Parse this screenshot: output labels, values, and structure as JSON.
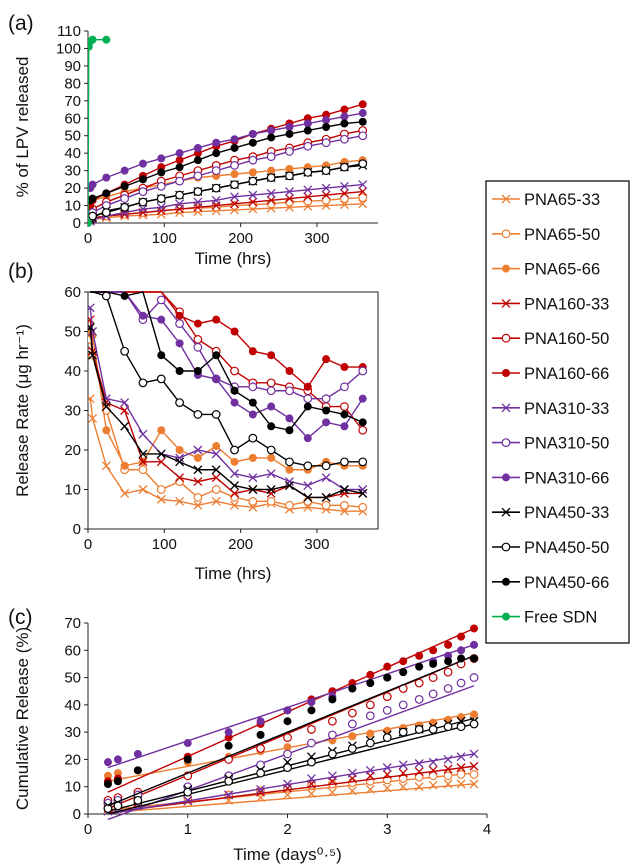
{
  "figure": {
    "legend": [
      {
        "name": "PNA65-33",
        "color": "#ED7D31",
        "marker": "x"
      },
      {
        "name": "PNA65-50",
        "color": "#ED7D31",
        "marker": "o"
      },
      {
        "name": "PNA65-66",
        "color": "#ED7D31",
        "marker": "dot"
      },
      {
        "name": "PNA160-33",
        "color": "#C00000",
        "marker": "x"
      },
      {
        "name": "PNA160-50",
        "color": "#C00000",
        "marker": "o"
      },
      {
        "name": "PNA160-66",
        "color": "#C00000",
        "marker": "dot"
      },
      {
        "name": "PNA310-33",
        "color": "#7030A0",
        "marker": "x"
      },
      {
        "name": "PNA310-50",
        "color": "#7030A0",
        "marker": "o"
      },
      {
        "name": "PNA310-66",
        "color": "#7030A0",
        "marker": "dot"
      },
      {
        "name": "PNA450-33",
        "color": "#000000",
        "marker": "x"
      },
      {
        "name": "PNA450-50",
        "color": "#000000",
        "marker": "o"
      },
      {
        "name": "PNA450-66",
        "color": "#000000",
        "marker": "dot"
      },
      {
        "name": "Free SDN",
        "color": "#00B050",
        "marker": "dot"
      }
    ]
  },
  "chart_data": [
    {
      "panel": "(a)",
      "type": "line",
      "xlabel": "Time (hrs)",
      "ylabel": "% of LPV released",
      "xlim": [
        0,
        380
      ],
      "ylim": [
        0,
        110
      ],
      "xticks": [
        0,
        100,
        200,
        300
      ],
      "yticks": [
        0,
        10,
        20,
        30,
        40,
        50,
        60,
        70,
        80,
        90,
        100,
        110
      ],
      "x": [
        3,
        6,
        24,
        48,
        72,
        96,
        120,
        144,
        168,
        192,
        216,
        240,
        264,
        288,
        312,
        336,
        360
      ],
      "series": [
        {
          "name": "PNA65-33",
          "values": [
            1,
            2,
            3,
            4,
            4.5,
            5,
            6,
            6.5,
            7,
            7.5,
            8,
            8.5,
            9,
            9.5,
            10,
            10.5,
            11
          ]
        },
        {
          "name": "PNA65-50",
          "values": [
            2,
            3,
            4,
            5,
            6,
            7,
            8,
            8.5,
            9,
            10,
            10.5,
            11,
            12,
            12.5,
            13,
            14,
            14.5
          ]
        },
        {
          "name": "PNA65-66",
          "values": [
            12,
            13,
            15,
            18,
            20,
            22,
            24,
            26,
            27,
            28,
            29,
            30,
            31,
            32,
            33,
            35,
            36
          ]
        },
        {
          "name": "PNA160-33",
          "values": [
            2,
            3,
            4,
            5,
            6,
            7,
            8,
            9,
            10,
            11,
            12,
            13,
            14,
            15,
            16,
            17,
            18
          ]
        },
        {
          "name": "PNA160-50",
          "values": [
            5,
            8,
            12,
            16,
            20,
            24,
            27,
            30,
            33,
            36,
            38,
            41,
            43,
            46,
            48,
            51,
            53
          ]
        },
        {
          "name": "PNA160-66",
          "values": [
            10,
            13,
            17,
            22,
            27,
            32,
            36,
            40,
            44,
            47,
            51,
            54,
            57,
            60,
            62,
            65,
            68
          ]
        },
        {
          "name": "PNA310-33",
          "values": [
            1,
            2,
            4,
            6,
            8,
            9,
            11,
            12,
            13,
            15,
            16,
            17,
            18,
            19,
            20,
            21,
            22
          ]
        },
        {
          "name": "PNA310-50",
          "values": [
            4,
            6,
            10,
            14,
            18,
            21,
            24,
            27,
            30,
            33,
            36,
            38,
            41,
            44,
            46,
            48,
            50
          ]
        },
        {
          "name": "PNA310-66",
          "values": [
            20,
            22,
            26,
            30,
            34,
            37,
            40,
            43,
            46,
            48,
            51,
            53,
            55,
            57,
            59,
            61,
            63
          ]
        },
        {
          "name": "PNA450-33",
          "values": [
            2,
            3,
            7,
            9,
            12,
            14,
            16,
            18,
            20,
            22,
            24,
            26,
            27,
            29,
            30,
            32,
            33
          ]
        },
        {
          "name": "PNA450-50",
          "values": [
            3,
            4,
            6,
            9,
            12,
            14,
            16,
            18,
            20,
            22,
            24,
            26,
            27,
            29,
            30,
            32,
            34
          ]
        },
        {
          "name": "PNA450-66",
          "values": [
            13,
            14,
            17,
            21,
            25,
            29,
            32,
            36,
            40,
            43,
            46,
            49,
            51,
            53,
            55,
            57,
            58
          ]
        },
        {
          "name": "Free SDN",
          "x": [
            0,
            1,
            3,
            6,
            24
          ],
          "values": [
            0,
            101,
            104,
            105,
            105
          ]
        }
      ]
    },
    {
      "panel": "(b)",
      "type": "line",
      "xlabel": "Time (hrs)",
      "ylabel": "Release Rate (μg hr⁻¹)",
      "xlim": [
        0,
        380
      ],
      "ylim": [
        0,
        60
      ],
      "xticks": [
        0,
        100,
        200,
        300
      ],
      "yticks": [
        0,
        10,
        20,
        30,
        40,
        50,
        60
      ],
      "x": [
        3,
        6,
        24,
        48,
        72,
        96,
        120,
        144,
        168,
        192,
        216,
        240,
        264,
        288,
        312,
        336,
        360
      ],
      "series": [
        {
          "name": "PNA65-33",
          "values": [
            33,
            28,
            16,
            9,
            10,
            7.5,
            7,
            6,
            7,
            6,
            5.5,
            6.5,
            5,
            5.5,
            5,
            4.5,
            4.5
          ]
        },
        {
          "name": "PNA65-50",
          "values": [
            48,
            44,
            30,
            15,
            15,
            10,
            12,
            8,
            10,
            8,
            7,
            7,
            6,
            7,
            6,
            6,
            5.5
          ]
        },
        {
          "name": "PNA65-66",
          "values": [
            50,
            49,
            25,
            16,
            17,
            25,
            20,
            18,
            21,
            17,
            18,
            18,
            15,
            15,
            17,
            16,
            16
          ]
        },
        {
          "name": "PNA160-33",
          "values": [
            53,
            45,
            32,
            30,
            17,
            17,
            13,
            12,
            13,
            9,
            10,
            9,
            11,
            8,
            8,
            9,
            9
          ]
        },
        {
          "name": "PNA160-50",
          "values": [
            60,
            60,
            60,
            60,
            60,
            60,
            55,
            48,
            45,
            40,
            37,
            37,
            36,
            35,
            31,
            31,
            25
          ]
        },
        {
          "name": "PNA160-66",
          "values": [
            60,
            60,
            60,
            60,
            60,
            60,
            54,
            52,
            53,
            50,
            45,
            44,
            40,
            36,
            43,
            41,
            41
          ]
        },
        {
          "name": "PNA310-33",
          "values": [
            56,
            50,
            33,
            32,
            24,
            19,
            18,
            20,
            19,
            14,
            13,
            14,
            12,
            11,
            13,
            10,
            10
          ]
        },
        {
          "name": "PNA310-50",
          "values": [
            60,
            60,
            60,
            60,
            53,
            58,
            52,
            46,
            38,
            36,
            36,
            35,
            35,
            33,
            33,
            36,
            40
          ]
        },
        {
          "name": "PNA310-66",
          "values": [
            60,
            60,
            60,
            60,
            54,
            53,
            47,
            39,
            38,
            32,
            29,
            31,
            28,
            23,
            27,
            26,
            33
          ]
        },
        {
          "name": "PNA450-33",
          "values": [
            51,
            44,
            31,
            26,
            19,
            19,
            17,
            15,
            15,
            11,
            10,
            10,
            11,
            8,
            8,
            10,
            9
          ]
        },
        {
          "name": "PNA450-50",
          "values": [
            60,
            60,
            59,
            45,
            37,
            38,
            32,
            29,
            29,
            20,
            23,
            20,
            17,
            16,
            16,
            17,
            17
          ]
        },
        {
          "name": "PNA450-66",
          "values": [
            60,
            60,
            60,
            59,
            60,
            44,
            40,
            40,
            44,
            35,
            32,
            26,
            25,
            31,
            30,
            29,
            27
          ]
        }
      ]
    },
    {
      "panel": "(c)",
      "type": "scatter",
      "xlabel": "Time (days⁰·⁵)",
      "ylabel": "Cumulative Release (%)",
      "xlim": [
        0,
        4
      ],
      "ylim": [
        0,
        70
      ],
      "xticks": [
        0,
        1,
        2,
        3,
        4
      ],
      "yticks": [
        0,
        10,
        20,
        30,
        40,
        50,
        60,
        70
      ],
      "x": [
        0.2,
        0.3,
        0.5,
        1,
        1.41,
        1.73,
        2,
        2.24,
        2.45,
        2.65,
        2.83,
        3,
        3.16,
        3.32,
        3.46,
        3.61,
        3.74,
        3.87
      ],
      "series": [
        {
          "name": "PNA65-33",
          "values": [
            1,
            2,
            3,
            4.5,
            5,
            6,
            7,
            7.5,
            8,
            8.5,
            9,
            9.5,
            10,
            10,
            10.5,
            11,
            11,
            11
          ],
          "fit": [
            0.5,
            11
          ]
        },
        {
          "name": "PNA65-50",
          "values": [
            2,
            3,
            4,
            6,
            7,
            8.5,
            9.5,
            10.5,
            11,
            11.5,
            12,
            12.5,
            13,
            13.5,
            14,
            14,
            14.5,
            14.5
          ],
          "fit": [
            1.5,
            15
          ]
        },
        {
          "name": "PNA65-66",
          "values": [
            14,
            15,
            16,
            19,
            21,
            23,
            24.5,
            26,
            27,
            28.5,
            29.5,
            30.5,
            31.5,
            32.5,
            33.5,
            34.5,
            35.5,
            36.5
          ],
          "fit": [
            12,
            37
          ]
        },
        {
          "name": "PNA160-33",
          "values": [
            2,
            3,
            4,
            5,
            7,
            8,
            9.5,
            11,
            12,
            13,
            14,
            14.5,
            15,
            15.5,
            16,
            16.5,
            17,
            17.5
          ],
          "fit": [
            0.5,
            17.5
          ]
        },
        {
          "name": "PNA160-50",
          "values": [
            5,
            6,
            8,
            14,
            20,
            24,
            28,
            31,
            34,
            37,
            40,
            43,
            46,
            48,
            50,
            52,
            55,
            57
          ],
          "fit": [
            2,
            58
          ]
        },
        {
          "name": "PNA160-66",
          "values": [
            12,
            13,
            16,
            21,
            28,
            33,
            38,
            42,
            45,
            48,
            51,
            54,
            56,
            58,
            60,
            62,
            65,
            68
          ],
          "fit": [
            8,
            68
          ]
        },
        {
          "name": "PNA310-33",
          "values": [
            1,
            2,
            3,
            5,
            7,
            9,
            11,
            13,
            14,
            15,
            16,
            17,
            18,
            18.5,
            19,
            20,
            21,
            22
          ],
          "fit": [
            0,
            22
          ]
        },
        {
          "name": "PNA310-50",
          "values": [
            4,
            5,
            7,
            10,
            14,
            18,
            22,
            26,
            29,
            33,
            36,
            38,
            40,
            42,
            44,
            46,
            48,
            50
          ],
          "fit": [
            -2,
            47
          ]
        },
        {
          "name": "PNA310-66",
          "values": [
            19,
            20,
            22,
            26,
            30,
            34,
            38,
            41,
            43,
            46,
            48,
            50,
            52,
            54,
            56,
            58,
            60,
            62
          ],
          "fit": [
            17,
            62
          ]
        },
        {
          "name": "PNA450-33",
          "values": [
            3,
            4,
            5,
            9,
            13,
            16,
            19,
            21,
            23,
            25,
            27,
            29,
            30,
            31,
            32,
            33,
            34,
            34
          ],
          "fit": [
            1,
            35
          ]
        },
        {
          "name": "PNA450-50",
          "values": [
            2,
            3,
            5,
            8,
            12,
            15,
            17,
            19,
            22,
            24,
            26,
            28,
            30,
            31,
            31,
            32,
            32,
            33
          ],
          "fit": [
            0,
            33
          ]
        },
        {
          "name": "PNA450-66",
          "values": [
            11,
            12,
            16,
            20,
            25,
            29,
            34,
            38,
            42,
            46,
            48,
            50,
            52,
            54,
            55,
            56,
            57,
            57
          ],
          "fit": [
            3,
            58
          ]
        }
      ]
    }
  ]
}
